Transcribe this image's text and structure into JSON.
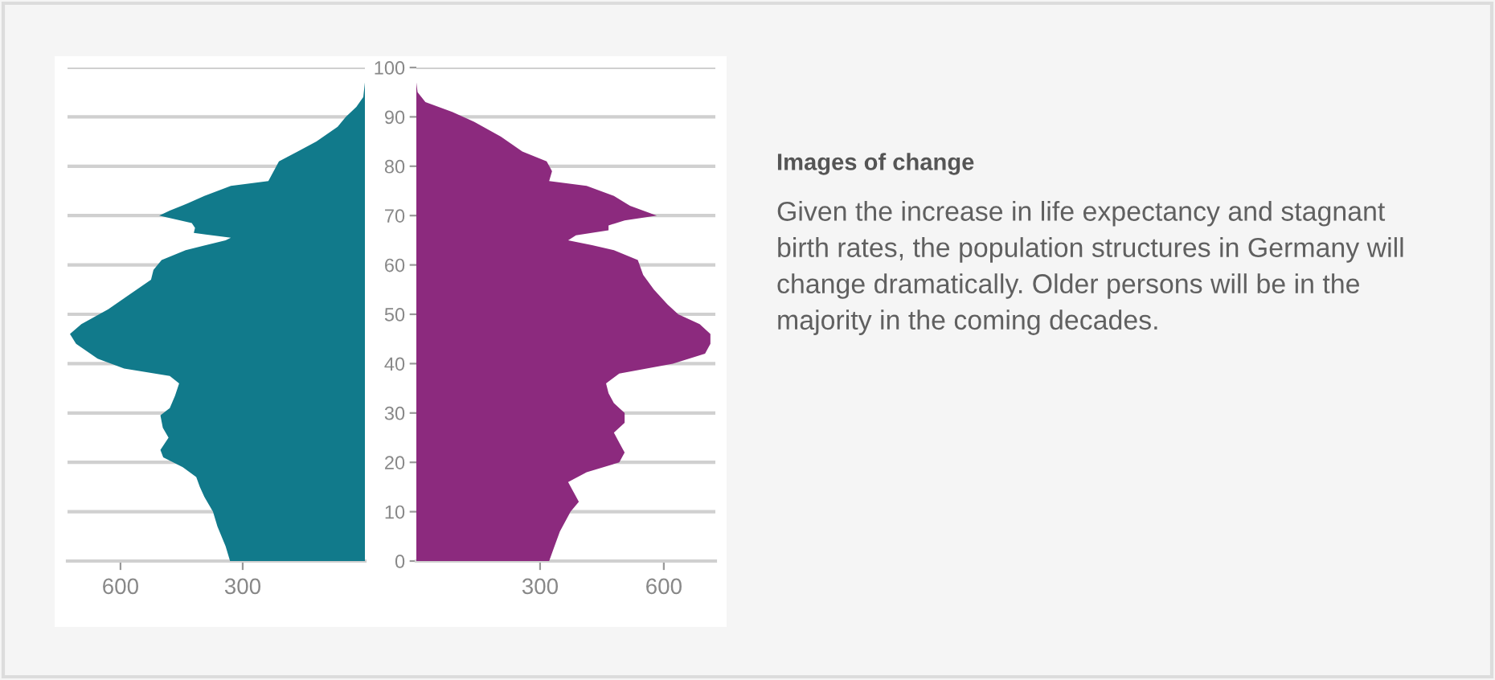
{
  "chart_data": [
    {
      "type": "area",
      "orientation": "horizontal",
      "xlim": [
        730,
        0
      ],
      "xticks": [
        600,
        300
      ],
      "ylim": [
        0,
        100
      ],
      "yticks": [
        0,
        10,
        20,
        30,
        40,
        50,
        60,
        70,
        80,
        90,
        100
      ],
      "tick_labels": "x",
      "grid": "y",
      "series": [
        {
          "color": "#117a8b",
          "x": [
            0,
            3,
            7,
            10,
            13,
            15,
            17,
            19,
            21,
            22.5,
            25,
            27,
            29.5,
            31,
            33.5,
            36,
            37.5,
            39,
            41,
            44,
            46,
            48,
            51,
            54,
            57,
            59,
            61,
            63,
            65,
            65.5,
            66.5,
            67.5,
            68.5,
            70,
            71,
            72.5,
            74,
            76,
            77,
            79,
            81,
            83,
            85,
            88,
            90,
            92,
            94,
            97
          ],
          "values": [
            331,
            342,
            362,
            373,
            394,
            405,
            414,
            447,
            495,
            502,
            482,
            496,
            502,
            479,
            466,
            456,
            479,
            591,
            656,
            709,
            724,
            696,
            630,
            578,
            525,
            519,
            499,
            440,
            342,
            329,
            420,
            417,
            425,
            505,
            479,
            434,
            394,
            329,
            237,
            224,
            211,
            165,
            119,
            67,
            47,
            21,
            4,
            0
          ]
        }
      ]
    },
    {
      "type": "area",
      "orientation": "horizontal",
      "xlim": [
        0,
        725
      ],
      "xticks": [
        300,
        600
      ],
      "ylim": [
        0,
        100
      ],
      "yticks": [
        0,
        10,
        20,
        30,
        40,
        50,
        60,
        70,
        80,
        90,
        100
      ],
      "grid": "y",
      "series": [
        {
          "color": "#8c2a7e",
          "x": [
            0,
            3,
            6,
            10,
            12,
            14,
            16,
            18,
            20,
            22,
            24,
            26,
            28,
            30,
            32,
            34,
            36,
            38,
            40,
            42,
            44,
            46,
            48,
            50,
            52,
            55,
            58,
            61,
            63,
            64,
            65,
            66,
            67,
            68,
            69,
            70,
            72,
            74,
            76,
            77,
            79,
            81,
            83,
            86,
            89,
            91,
            93,
            95,
            97
          ],
          "values": [
            322,
            335,
            348,
            374,
            394,
            381,
            368,
            413,
            492,
            505,
            492,
            479,
            505,
            505,
            479,
            466,
            460,
            492,
            622,
            700,
            713,
            713,
            687,
            635,
            609,
            576,
            550,
            537,
            479,
            426,
            368,
            387,
            466,
            466,
            505,
            583,
            518,
            479,
            413,
            322,
            329,
            316,
            257,
            205,
            140,
            87,
            22,
            3,
            0
          ]
        }
      ]
    },
    {
      "type": "other",
      "title": "Images of change",
      "annotations": [
        "Given the increase in life expectancy and stagnant birth rates, the population structures in Germany will change dramatically. Older persons will be in the majority in the coming decades."
      ]
    }
  ]
}
